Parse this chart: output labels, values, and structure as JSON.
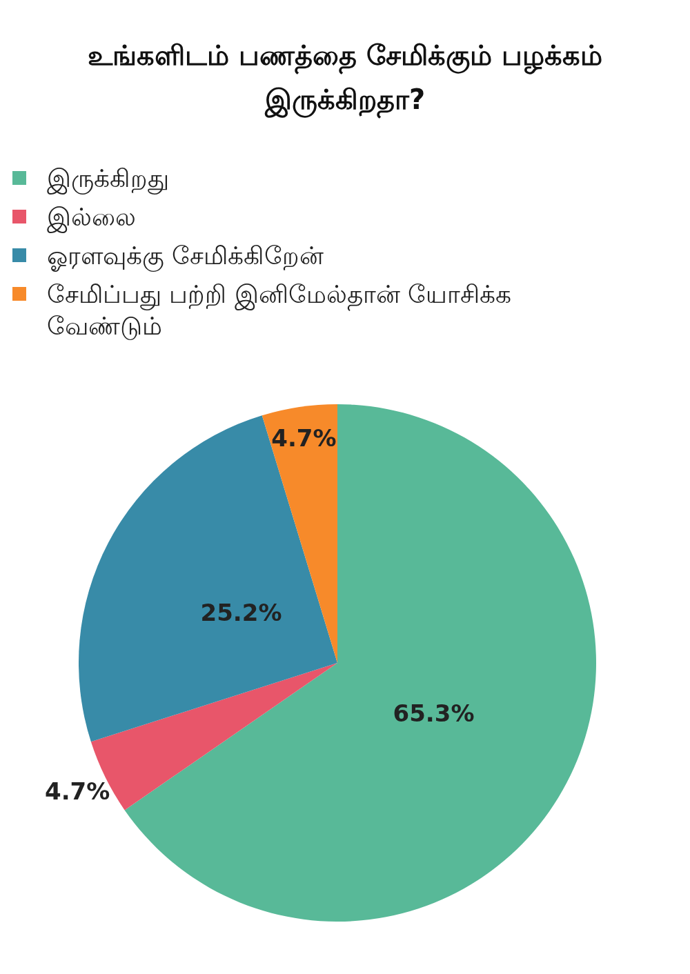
{
  "chart_data": {
    "type": "pie",
    "title": "உங்களிடம் பணத்தை சேமிக்கும் பழக்கம் இருக்கிறதா?",
    "categories": [
      "இருக்கிறது",
      "இல்லை",
      "ஓரளவுக்கு சேமிக்கிறேன்",
      "சேமிப்பது பற்றி இனிமேல்தான் யோசிக்க வேண்டும்"
    ],
    "values": [
      65.3,
      4.7,
      25.2,
      4.7
    ],
    "colors": [
      "#58b998",
      "#e8566a",
      "#388ba8",
      "#f78a2a"
    ],
    "value_labels": [
      "65.3%",
      "4.7%",
      "25.2%",
      "4.7%"
    ],
    "legend": "top left"
  }
}
